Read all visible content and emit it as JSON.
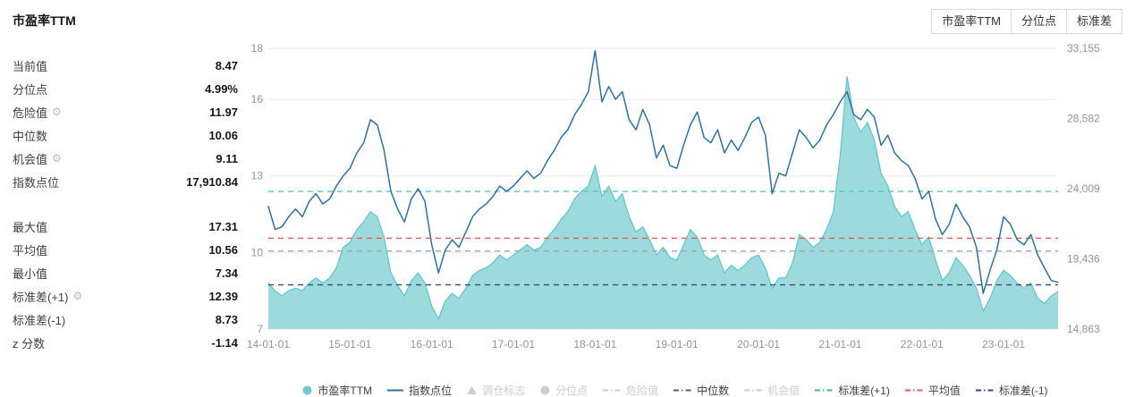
{
  "header": {
    "title": "市盈率TTM",
    "tabs": [
      "市盈率TTM",
      "分位点",
      "标准差"
    ]
  },
  "stats": {
    "groups": [
      {
        "rows": [
          {
            "label": "当前值",
            "value": "8.47"
          },
          {
            "label": "分位点",
            "value": "4.99%"
          },
          {
            "label": "危险值",
            "value": "11.97",
            "gear": true
          },
          {
            "label": "中位数",
            "value": "10.06"
          },
          {
            "label": "机会值",
            "value": "9.11",
            "gear": true
          },
          {
            "label": "指数点位",
            "value": "17,910.84"
          }
        ]
      },
      {
        "rows": [
          {
            "label": "最大值",
            "value": "17.31"
          },
          {
            "label": "平均值",
            "value": "10.56"
          },
          {
            "label": "最小值",
            "value": "7.34"
          },
          {
            "label": "标准差(+1)",
            "value": "12.39",
            "gear": true
          },
          {
            "label": "标准差(-1)",
            "value": "8.73"
          },
          {
            "label": "z 分数",
            "value": "-1.14"
          }
        ]
      }
    ]
  },
  "chart_data": {
    "type": "area",
    "title": "市盈率TTM",
    "x_start": "2014-01",
    "x_interval": "month",
    "x_axis_labels": [
      "14-01-01",
      "15-01-01",
      "16-01-01",
      "17-01-01",
      "18-01-01",
      "19-01-01",
      "20-01-01",
      "21-01-01",
      "22-01-01",
      "23-01-01"
    ],
    "left_axis": {
      "min": 7,
      "max": 18,
      "ticks": [
        7,
        10,
        13,
        16,
        18
      ]
    },
    "right_axis": {
      "min": 14863,
      "max": 33155,
      "tick_labels": [
        "14,863",
        "19,436",
        "24,009",
        "28,582",
        "33,155"
      ]
    },
    "series": [
      {
        "name": "市盈率TTM",
        "type": "area",
        "axis": "left",
        "color": "#8bd3d7",
        "line_color": "#5ec5ca",
        "values": [
          8.8,
          8.5,
          8.3,
          8.5,
          8.6,
          8.5,
          8.8,
          9.0,
          8.8,
          9.0,
          9.4,
          10.2,
          10.4,
          10.9,
          11.2,
          11.6,
          11.4,
          10.6,
          9.2,
          8.7,
          8.3,
          8.9,
          9.2,
          8.8,
          7.9,
          7.4,
          8.1,
          8.4,
          8.2,
          8.6,
          9.1,
          9.3,
          9.4,
          9.6,
          9.9,
          9.7,
          9.9,
          10.1,
          10.3,
          10.1,
          10.2,
          10.6,
          10.9,
          11.3,
          11.6,
          12.1,
          12.4,
          12.6,
          13.4,
          12.2,
          12.6,
          12.0,
          12.3,
          11.4,
          10.8,
          11.0,
          10.5,
          9.9,
          10.2,
          9.8,
          9.7,
          10.3,
          10.9,
          10.6,
          9.9,
          9.7,
          9.9,
          9.2,
          9.5,
          9.3,
          9.5,
          9.8,
          9.9,
          9.4,
          8.6,
          9.0,
          9.0,
          9.6,
          10.7,
          10.5,
          10.2,
          10.4,
          10.9,
          11.6,
          13.8,
          16.9,
          15.3,
          14.7,
          15.1,
          14.4,
          13.1,
          12.6,
          11.8,
          11.4,
          11.6,
          10.9,
          10.3,
          10.6,
          9.7,
          8.9,
          9.2,
          9.8,
          9.5,
          9.1,
          8.6,
          7.7,
          8.2,
          8.9,
          9.3,
          9.1,
          8.8,
          8.6,
          8.8,
          8.2,
          8.0,
          8.3,
          8.47
        ]
      },
      {
        "name": "指数点位",
        "type": "line",
        "axis": "right",
        "color": "#2e729f",
        "values": [
          22850,
          21350,
          21520,
          22180,
          22680,
          22180,
          23180,
          23680,
          23010,
          23340,
          24180,
          24840,
          25340,
          26340,
          27000,
          28500,
          28170,
          26500,
          23840,
          22680,
          21850,
          23340,
          24010,
          23180,
          20350,
          18520,
          20020,
          20680,
          20190,
          21180,
          22180,
          22680,
          23010,
          23510,
          24180,
          23840,
          24180,
          24680,
          25170,
          24680,
          25010,
          25840,
          26500,
          27340,
          27840,
          28830,
          29500,
          30330,
          32990,
          29660,
          30660,
          29830,
          30330,
          28500,
          27840,
          29170,
          28170,
          26010,
          26840,
          25510,
          25340,
          26840,
          28170,
          29000,
          27340,
          27000,
          27840,
          26340,
          27170,
          26500,
          27340,
          28330,
          28670,
          27500,
          23680,
          25010,
          24840,
          26340,
          27840,
          27340,
          26670,
          27170,
          28170,
          28830,
          29660,
          30330,
          28830,
          28500,
          29170,
          28670,
          26840,
          27500,
          26340,
          25840,
          25510,
          24680,
          23340,
          23840,
          22010,
          21020,
          21680,
          23010,
          22180,
          21520,
          20190,
          17190,
          18690,
          20020,
          22180,
          21680,
          20680,
          20350,
          21020,
          19690,
          18850,
          18020,
          17911
        ]
      }
    ],
    "reference_lines": [
      {
        "name": "标准差(+1)",
        "value": 12.39,
        "axis": "left",
        "color": "#5ac6c0"
      },
      {
        "name": "平均值",
        "value": 10.56,
        "axis": "left",
        "color": "#e35b5b"
      },
      {
        "name": "中位数",
        "value": 10.06,
        "axis": "left",
        "color": "#a3a7ae"
      },
      {
        "name": "标准差(-1)",
        "value": 8.73,
        "axis": "left",
        "color": "#3a4a78"
      }
    ],
    "grid": true,
    "legend_position": "bottom"
  },
  "legend": {
    "items": [
      {
        "label": "市盈率TTM",
        "marker": "circle",
        "color": "#6fc7cd",
        "active": true
      },
      {
        "label": "指数点位",
        "marker": "line",
        "color": "#2e729f",
        "active": true
      },
      {
        "label": "调仓标志",
        "marker": "triangle",
        "color": "#c9ced6",
        "active": false
      },
      {
        "label": "分位点",
        "marker": "circle",
        "color": "#c9ced6",
        "active": false
      },
      {
        "label": "危险值",
        "marker": "dash",
        "color": "#c9ced6",
        "active": false
      },
      {
        "label": "中位数",
        "marker": "dash",
        "color": "#5b6069",
        "active": true
      },
      {
        "label": "机会值",
        "marker": "dash",
        "color": "#c9ced6",
        "active": false
      },
      {
        "label": "标准差(+1)",
        "marker": "dash",
        "color": "#3fb6ad",
        "active": true
      },
      {
        "label": "平均值",
        "marker": "dash",
        "color": "#e35b5b",
        "active": true
      },
      {
        "label": "标准差(-1)",
        "marker": "dash",
        "color": "#3a4a78",
        "active": true
      }
    ]
  }
}
